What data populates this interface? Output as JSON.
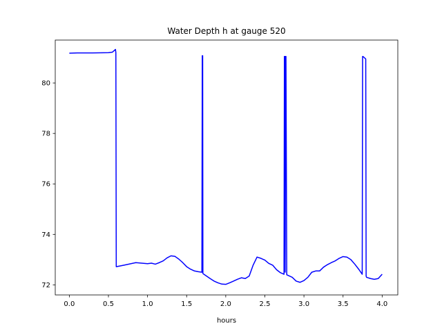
{
  "chart_data": {
    "type": "line",
    "title": "Water Depth h at gauge 520",
    "xlabel": "hours",
    "ylabel": "",
    "xlim": [
      -0.18,
      4.2
    ],
    "ylim": [
      71.6,
      81.7
    ],
    "xticks": [
      0.0,
      0.5,
      1.0,
      1.5,
      2.0,
      2.5,
      3.0,
      3.5,
      4.0
    ],
    "xtick_labels": [
      "0.0",
      "0.5",
      "1.0",
      "1.5",
      "2.0",
      "2.5",
      "3.0",
      "3.5",
      "4.0"
    ],
    "yticks": [
      72,
      74,
      76,
      78,
      80
    ],
    "ytick_labels": [
      "72",
      "74",
      "76",
      "78",
      "80"
    ],
    "grid": false,
    "legend": "none",
    "series": [
      {
        "color": "#0000ff",
        "x": [
          0.0,
          0.1,
          0.3,
          0.5,
          0.55,
          0.59,
          0.595,
          0.6,
          0.7,
          0.85,
          1.0,
          1.05,
          1.1,
          1.15,
          1.2,
          1.25,
          1.3,
          1.35,
          1.4,
          1.45,
          1.5,
          1.55,
          1.6,
          1.65,
          1.695,
          1.7,
          1.705,
          1.708,
          1.72,
          1.8,
          1.85,
          1.9,
          1.95,
          2.0,
          2.05,
          2.1,
          2.15,
          2.2,
          2.25,
          2.3,
          2.35,
          2.4,
          2.45,
          2.5,
          2.55,
          2.6,
          2.65,
          2.7,
          2.745,
          2.75,
          2.755,
          2.76,
          2.765,
          2.77,
          2.78,
          2.85,
          2.9,
          2.95,
          3.0,
          3.05,
          3.1,
          3.15,
          3.2,
          3.25,
          3.3,
          3.35,
          3.4,
          3.45,
          3.5,
          3.55,
          3.6,
          3.65,
          3.7,
          3.745,
          3.75,
          3.755,
          3.78,
          3.79,
          3.795,
          3.8,
          3.85,
          3.9,
          3.95,
          4.0
        ],
        "y": [
          81.18,
          81.19,
          81.19,
          81.2,
          81.22,
          81.33,
          81.2,
          72.72,
          72.78,
          72.88,
          72.84,
          72.86,
          72.82,
          72.88,
          72.95,
          73.07,
          73.15,
          73.13,
          73.02,
          72.88,
          72.72,
          72.62,
          72.55,
          72.52,
          72.5,
          81.08,
          81.08,
          72.45,
          72.42,
          72.25,
          72.15,
          72.08,
          72.03,
          72.02,
          72.08,
          72.15,
          72.22,
          72.28,
          72.25,
          72.35,
          72.78,
          73.1,
          73.05,
          72.98,
          72.85,
          72.78,
          72.6,
          72.48,
          72.42,
          81.05,
          81.05,
          72.5,
          81.05,
          81.05,
          72.4,
          72.3,
          72.15,
          72.1,
          72.17,
          72.3,
          72.5,
          72.55,
          72.55,
          72.7,
          72.8,
          72.88,
          72.95,
          73.05,
          73.12,
          73.1,
          73.0,
          72.82,
          72.62,
          72.42,
          81.05,
          81.05,
          80.98,
          80.95,
          72.35,
          72.3,
          72.25,
          72.22,
          72.25,
          72.42
        ]
      }
    ]
  }
}
